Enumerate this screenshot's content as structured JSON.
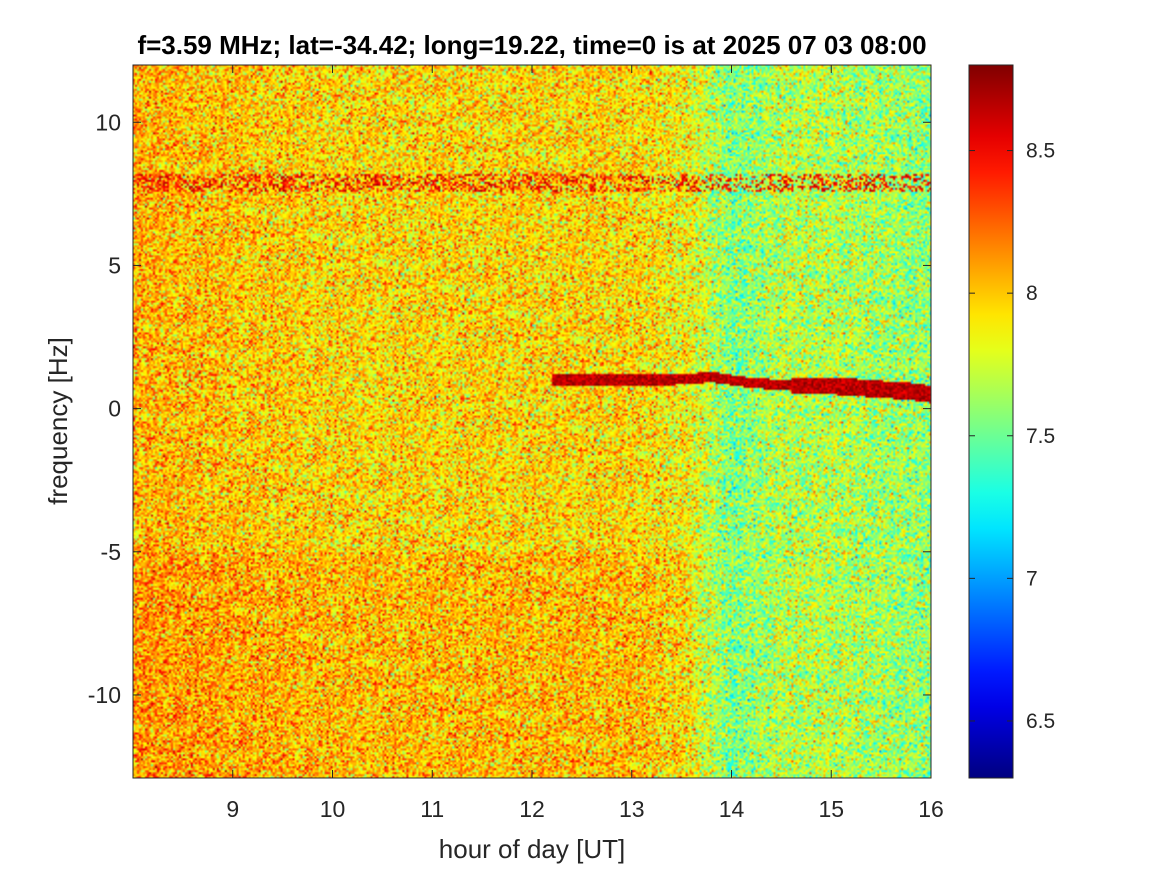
{
  "chart_data": {
    "type": "heatmap",
    "title": "f=3.59 MHz;  lat=-34.42; long=19.22, time=0 is at 2025 07 03 08:00",
    "xlabel": "hour of day [UT]",
    "ylabel": "frequency [Hz]",
    "xlim": [
      8.0,
      16.0
    ],
    "ylim": [
      -12.9,
      12.0
    ],
    "xticks": [
      9,
      10,
      11,
      12,
      13,
      14,
      15,
      16
    ],
    "xtick_labels": [
      "9",
      "10",
      "11",
      "12",
      "13",
      "14",
      "15",
      "16"
    ],
    "yticks": [
      10,
      5,
      0,
      -5,
      -10
    ],
    "ytick_labels": [
      "10",
      "5",
      "0",
      "-5",
      "-10"
    ],
    "colorbar": {
      "colormap": "jet",
      "clim": [
        6.3,
        8.8
      ],
      "ticks": [
        8.5,
        8,
        7.5,
        7,
        6.5
      ],
      "tick_labels": [
        "8.5",
        "8",
        "7.5",
        "7",
        "6.5"
      ]
    },
    "colorbar_colors": [
      "#00008f",
      "#0000ff",
      "#00ffff",
      "#ffff00",
      "#ff0000",
      "#800000"
    ],
    "background_level": {
      "description_hours": [
        8.0,
        9.0,
        10.0,
        11.0,
        12.0,
        13.0,
        13.6,
        14.0,
        14.5,
        15.0,
        15.5,
        16.0
      ],
      "mean_value": [
        8.05,
        8.0,
        7.95,
        7.95,
        7.95,
        7.95,
        7.85,
        7.55,
        7.7,
        7.7,
        7.65,
        7.6
      ]
    },
    "traces": [
      {
        "x": [
          12.2,
          12.8,
          13.4,
          13.8,
          14.2,
          14.6,
          15.0,
          15.4,
          15.8,
          16.0
        ],
        "y": [
          1.0,
          1.0,
          1.0,
          1.1,
          0.9,
          0.8,
          0.8,
          0.7,
          0.6,
          0.5
        ],
        "value": 8.8
      }
    ],
    "interference_band": {
      "y": 7.9,
      "value": 8.7
    },
    "grid": false
  }
}
